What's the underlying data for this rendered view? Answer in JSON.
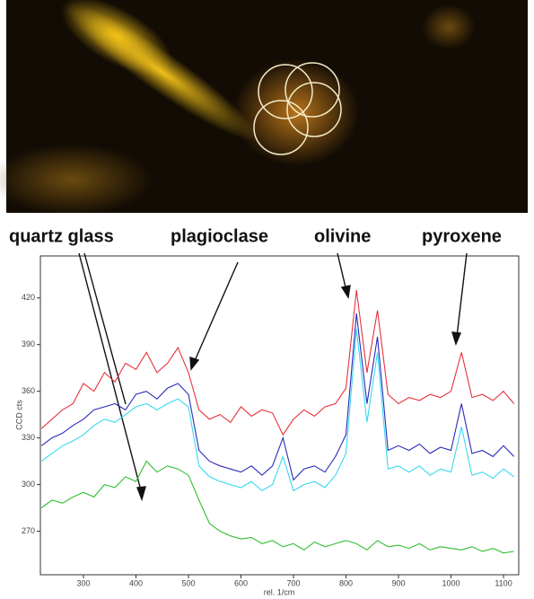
{
  "chart_data": {
    "type": "line",
    "annotations": [
      "quartz glass",
      "plagioclase",
      "olivine",
      "pyroxene"
    ],
    "xlabel": "rel. 1/cm",
    "ylabel": "CCD cts",
    "x": [
      220,
      240,
      260,
      280,
      300,
      320,
      340,
      360,
      380,
      400,
      420,
      440,
      460,
      480,
      500,
      520,
      540,
      560,
      580,
      600,
      620,
      640,
      660,
      680,
      700,
      720,
      740,
      760,
      780,
      800,
      820,
      840,
      860,
      880,
      900,
      920,
      940,
      960,
      980,
      1000,
      1020,
      1040,
      1060,
      1080,
      1100,
      1120
    ],
    "series": [
      {
        "color": "#e8323c",
        "values": [
          336,
          342,
          348,
          352,
          365,
          360,
          372,
          366,
          378,
          374,
          385,
          372,
          378,
          388,
          372,
          348,
          342,
          345,
          340,
          350,
          344,
          348,
          346,
          332,
          342,
          348,
          344,
          350,
          352,
          362,
          425,
          372,
          412,
          358,
          352,
          356,
          354,
          358,
          356,
          360,
          385,
          356,
          358,
          354,
          360,
          352
        ]
      },
      {
        "color": "#2a2ab8",
        "values": [
          325,
          330,
          333,
          338,
          342,
          348,
          350,
          352,
          348,
          358,
          360,
          355,
          362,
          365,
          358,
          322,
          315,
          312,
          310,
          308,
          312,
          306,
          312,
          330,
          303,
          310,
          312,
          308,
          318,
          332,
          410,
          352,
          395,
          322,
          325,
          322,
          326,
          320,
          324,
          322,
          352,
          320,
          322,
          318,
          325,
          318
        ]
      },
      {
        "color": "#38d8f0",
        "values": [
          315,
          320,
          325,
          328,
          332,
          338,
          342,
          340,
          345,
          350,
          352,
          348,
          352,
          355,
          350,
          312,
          305,
          302,
          300,
          298,
          302,
          296,
          300,
          318,
          296,
          300,
          302,
          298,
          306,
          320,
          400,
          340,
          385,
          310,
          312,
          308,
          312,
          306,
          310,
          308,
          337,
          306,
          308,
          304,
          310,
          305
        ]
      },
      {
        "color": "#2fc02f",
        "values": [
          285,
          290,
          288,
          292,
          295,
          292,
          300,
          298,
          305,
          302,
          315,
          308,
          312,
          310,
          306,
          290,
          275,
          270,
          267,
          265,
          266,
          262,
          264,
          260,
          262,
          258,
          263,
          260,
          262,
          264,
          262,
          258,
          264,
          260,
          261,
          259,
          262,
          258,
          260,
          259,
          258,
          260,
          257,
          259,
          256,
          257
        ]
      }
    ],
    "xlim": [
      218,
      1129
    ],
    "ylim": [
      242,
      447
    ],
    "xticks": [
      300,
      400,
      500,
      600,
      700,
      800,
      900,
      1000,
      1100
    ],
    "yticks": [
      270,
      300,
      330,
      360,
      390,
      420
    ]
  }
}
